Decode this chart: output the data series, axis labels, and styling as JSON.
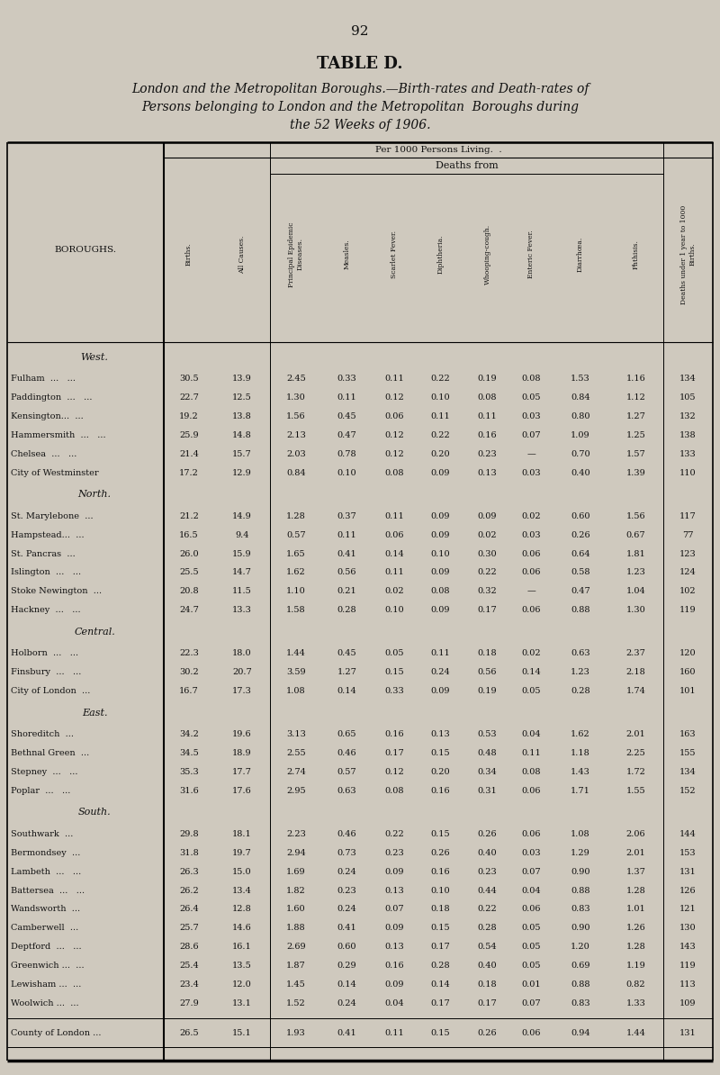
{
  "page_number": "92",
  "title": "TABLE D.",
  "subtitle_line1": "London and the Metropolitan Boroughs.—Birth-rates and Death-rates of",
  "subtitle_line2": "Persons belonging to London and the Metropolitan  Boroughs during",
  "subtitle_line3": "the 52 Weeks of 1906.",
  "col_header_texts": [
    "Births.",
    "All Causes.",
    "Principal Epidemic\nDiseases.",
    "Measles.",
    "Scarlet Fever.",
    "Diphtheria.",
    "Whooping-cough.",
    "Enteric Fever.",
    "Diarrhœa.",
    "Phthisis.",
    "Deaths under 1 year to 1000\nBirths."
  ],
  "sections": [
    {
      "section_name": "West.",
      "rows": [
        {
          "name": "Fulham",
          "d1": "...",
          "d2": "...",
          "vals": [
            "30.5",
            "13.9",
            "2.45",
            "0.33",
            "0.11",
            "0.22",
            "0.19",
            "0.08",
            "1.53",
            "1.16",
            "134"
          ]
        },
        {
          "name": "Paddington",
          "d1": "...",
          "d2": "...",
          "vals": [
            "22.7",
            "12.5",
            "1.30",
            "0.11",
            "0.12",
            "0.10",
            "0.08",
            "0.05",
            "0.84",
            "1.12",
            "105"
          ]
        },
        {
          "name": "Kensington...",
          "d1": "...",
          "d2": "",
          "vals": [
            "19.2",
            "13.8",
            "1.56",
            "0.45",
            "0.06",
            "0.11",
            "0.11",
            "0.03",
            "0.80",
            "1.27",
            "132"
          ]
        },
        {
          "name": "Hammersmith",
          "d1": "...",
          "d2": "...",
          "vals": [
            "25.9",
            "14.8",
            "2.13",
            "0.47",
            "0.12",
            "0.22",
            "0.16",
            "0.07",
            "1.09",
            "1.25",
            "138"
          ]
        },
        {
          "name": "Chelsea",
          "d1": "...",
          "d2": "...",
          "vals": [
            "21.4",
            "15.7",
            "2.03",
            "0.78",
            "0.12",
            "0.20",
            "0.23",
            "—",
            "0.70",
            "1.57",
            "133"
          ]
        },
        {
          "name": "City of Westminster",
          "d1": "",
          "d2": "",
          "vals": [
            "17.2",
            "12.9",
            "0.84",
            "0.10",
            "0.08",
            "0.09",
            "0.13",
            "0.03",
            "0.40",
            "1.39",
            "110"
          ]
        }
      ]
    },
    {
      "section_name": "North.",
      "rows": [
        {
          "name": "St. Marylebone",
          "d1": "...",
          "d2": "",
          "vals": [
            "21.2",
            "14.9",
            "1.28",
            "0.37",
            "0.11",
            "0.09",
            "0.09",
            "0.02",
            "0.60",
            "1.56",
            "117"
          ]
        },
        {
          "name": "Hampstead...",
          "d1": "...",
          "d2": "",
          "vals": [
            "16.5",
            "9.4",
            "0.57",
            "0.11",
            "0.06",
            "0.09",
            "0.02",
            "0.03",
            "0.26",
            "0.67",
            "77"
          ]
        },
        {
          "name": "St. Pancras",
          "d1": "...",
          "d2": "",
          "vals": [
            "26.0",
            "15.9",
            "1.65",
            "0.41",
            "0.14",
            "0.10",
            "0.30",
            "0.06",
            "0.64",
            "1.81",
            "123"
          ]
        },
        {
          "name": "Islington",
          "d1": "...",
          "d2": "...",
          "vals": [
            "25.5",
            "14.7",
            "1.62",
            "0.56",
            "0.11",
            "0.09",
            "0.22",
            "0.06",
            "0.58",
            "1.23",
            "124"
          ]
        },
        {
          "name": "Stoke Newington",
          "d1": "...",
          "d2": "",
          "vals": [
            "20.8",
            "11.5",
            "1.10",
            "0.21",
            "0.02",
            "0.08",
            "0.32",
            "—",
            "0.47",
            "1.04",
            "102"
          ]
        },
        {
          "name": "Hackney",
          "d1": "...",
          "d2": "...",
          "vals": [
            "24.7",
            "13.3",
            "1.58",
            "0.28",
            "0.10",
            "0.09",
            "0.17",
            "0.06",
            "0.88",
            "1.30",
            "119"
          ]
        }
      ]
    },
    {
      "section_name": "Central.",
      "rows": [
        {
          "name": "Holborn",
          "d1": "...",
          "d2": "...",
          "vals": [
            "22.3",
            "18.0",
            "1.44",
            "0.45",
            "0.05",
            "0.11",
            "0.18",
            "0.02",
            "0.63",
            "2.37",
            "120"
          ]
        },
        {
          "name": "Finsbury",
          "d1": "...",
          "d2": "...",
          "vals": [
            "30.2",
            "20.7",
            "3.59",
            "1.27",
            "0.15",
            "0.24",
            "0.56",
            "0.14",
            "1.23",
            "2.18",
            "160"
          ]
        },
        {
          "name": "City of London",
          "d1": "...",
          "d2": "",
          "vals": [
            "16.7",
            "17.3",
            "1.08",
            "0.14",
            "0.33",
            "0.09",
            "0.19",
            "0.05",
            "0.28",
            "1.74",
            "101"
          ]
        }
      ]
    },
    {
      "section_name": "East.",
      "rows": [
        {
          "name": "Shoreditch",
          "d1": "...",
          "d2": "",
          "vals": [
            "34.2",
            "19.6",
            "3.13",
            "0.65",
            "0.16",
            "0.13",
            "0.53",
            "0.04",
            "1.62",
            "2.01",
            "163"
          ]
        },
        {
          "name": "Bethnal Green",
          "d1": "...",
          "d2": "",
          "vals": [
            "34.5",
            "18.9",
            "2.55",
            "0.46",
            "0.17",
            "0.15",
            "0.48",
            "0.11",
            "1.18",
            "2.25",
            "155"
          ]
        },
        {
          "name": "Stepney",
          "d1": "...",
          "d2": "...",
          "vals": [
            "35.3",
            "17.7",
            "2.74",
            "0.57",
            "0.12",
            "0.20",
            "0.34",
            "0.08",
            "1.43",
            "1.72",
            "134"
          ]
        },
        {
          "name": "Poplar",
          "d1": "...",
          "d2": "...",
          "vals": [
            "31.6",
            "17.6",
            "2.95",
            "0.63",
            "0.08",
            "0.16",
            "0.31",
            "0.06",
            "1.71",
            "1.55",
            "152"
          ]
        }
      ]
    },
    {
      "section_name": "South.",
      "rows": [
        {
          "name": "Southwark",
          "d1": "...",
          "d2": "",
          "vals": [
            "29.8",
            "18.1",
            "2.23",
            "0.46",
            "0.22",
            "0.15",
            "0.26",
            "0.06",
            "1.08",
            "2.06",
            "144"
          ]
        },
        {
          "name": "Bermondsey",
          "d1": "...",
          "d2": "",
          "vals": [
            "31.8",
            "19.7",
            "2.94",
            "0.73",
            "0.23",
            "0.26",
            "0.40",
            "0.03",
            "1.29",
            "2.01",
            "153"
          ]
        },
        {
          "name": "Lambeth",
          "d1": "...",
          "d2": "...",
          "vals": [
            "26.3",
            "15.0",
            "1.69",
            "0.24",
            "0.09",
            "0.16",
            "0.23",
            "0.07",
            "0.90",
            "1.37",
            "131"
          ]
        },
        {
          "name": "Battersea",
          "d1": "...",
          "d2": "...",
          "vals": [
            "26.2",
            "13.4",
            "1.82",
            "0.23",
            "0.13",
            "0.10",
            "0.44",
            "0.04",
            "0.88",
            "1.28",
            "126"
          ]
        },
        {
          "name": "Wandsworth",
          "d1": "...",
          "d2": "",
          "vals": [
            "26.4",
            "12.8",
            "1.60",
            "0.24",
            "0.07",
            "0.18",
            "0.22",
            "0.06",
            "0.83",
            "1.01",
            "121"
          ]
        },
        {
          "name": "Camberwell",
          "d1": "...",
          "d2": "",
          "vals": [
            "25.7",
            "14.6",
            "1.88",
            "0.41",
            "0.09",
            "0.15",
            "0.28",
            "0.05",
            "0.90",
            "1.26",
            "130"
          ]
        },
        {
          "name": "Deptford",
          "d1": "...",
          "d2": "...",
          "vals": [
            "28.6",
            "16.1",
            "2.69",
            "0.60",
            "0.13",
            "0.17",
            "0.54",
            "0.05",
            "1.20",
            "1.28",
            "143"
          ]
        },
        {
          "name": "Greenwich ...",
          "d1": "...",
          "d2": "",
          "vals": [
            "25.4",
            "13.5",
            "1.87",
            "0.29",
            "0.16",
            "0.28",
            "0.40",
            "0.05",
            "0.69",
            "1.19",
            "119"
          ]
        },
        {
          "name": "Lewisham ...",
          "d1": "...",
          "d2": "",
          "vals": [
            "23.4",
            "12.0",
            "1.45",
            "0.14",
            "0.09",
            "0.14",
            "0.18",
            "0.01",
            "0.88",
            "0.82",
            "113"
          ]
        },
        {
          "name": "Woolwich ...",
          "d1": "...",
          "d2": "",
          "vals": [
            "27.9",
            "13.1",
            "1.52",
            "0.24",
            "0.04",
            "0.17",
            "0.17",
            "0.07",
            "0.83",
            "1.33",
            "109"
          ]
        }
      ]
    }
  ],
  "footer_row": {
    "name": "County of London ...",
    "vals": [
      "26.5",
      "15.1",
      "1.93",
      "0.41",
      "0.11",
      "0.15",
      "0.26",
      "0.06",
      "0.94",
      "1.44",
      "131"
    ]
  },
  "bg_color": "#cfc9be",
  "text_color": "#111111"
}
